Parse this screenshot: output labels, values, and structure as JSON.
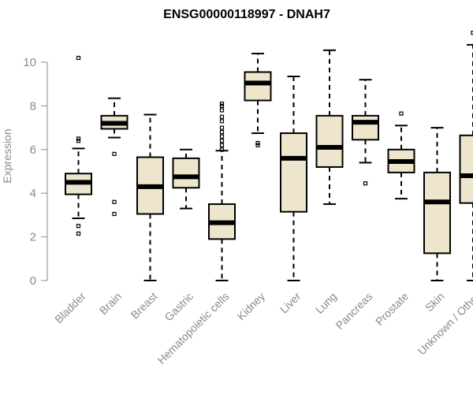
{
  "chart_data": {
    "type": "boxplot",
    "title": "ENSG00000118997 - DNAH7",
    "xlabel": "",
    "ylabel": "Expression",
    "ylim": [
      0,
      11.5
    ],
    "yticks": [
      0,
      2,
      4,
      6,
      8,
      10
    ],
    "box_fill": "#ede6cc",
    "stroke": "#000000",
    "categories": [
      "Bladder",
      "Brain",
      "Breast",
      "Gastric",
      "Hematopoietic cells",
      "Kidney",
      "Liver",
      "Lung",
      "Pancreas",
      "Prostate",
      "Skin",
      "Unknown / Other"
    ],
    "boxes": [
      {
        "whisker_low": 2.85,
        "q1": 3.95,
        "median": 4.5,
        "q3": 4.9,
        "whisker_high": 6.05,
        "outliers": [
          2.15,
          2.5,
          6.4,
          6.5,
          10.2
        ]
      },
      {
        "whisker_low": 6.55,
        "q1": 6.95,
        "median": 7.2,
        "q3": 7.55,
        "whisker_high": 8.35,
        "outliers": [
          3.05,
          3.6,
          5.8
        ]
      },
      {
        "whisker_low": 0.0,
        "q1": 3.05,
        "median": 4.3,
        "q3": 5.65,
        "whisker_high": 7.6,
        "outliers": []
      },
      {
        "whisker_low": 3.3,
        "q1": 4.25,
        "median": 4.75,
        "q3": 5.6,
        "whisker_high": 6.0,
        "outliers": []
      },
      {
        "whisker_low": 0.0,
        "q1": 1.9,
        "median": 2.65,
        "q3": 3.5,
        "whisker_high": 5.95,
        "outliers": [
          6.0,
          6.2,
          6.4,
          6.6,
          6.8,
          7.0,
          7.3,
          7.5,
          7.8,
          8.0,
          8.1
        ]
      },
      {
        "whisker_low": 6.75,
        "q1": 8.25,
        "median": 9.05,
        "q3": 9.55,
        "whisker_high": 10.4,
        "outliers": [
          6.2,
          6.3
        ]
      },
      {
        "whisker_low": 0.0,
        "q1": 3.15,
        "median": 5.6,
        "q3": 6.75,
        "whisker_high": 9.35,
        "outliers": []
      },
      {
        "whisker_low": 3.5,
        "q1": 5.2,
        "median": 6.1,
        "q3": 7.55,
        "whisker_high": 10.55,
        "outliers": []
      },
      {
        "whisker_low": 5.4,
        "q1": 6.45,
        "median": 7.25,
        "q3": 7.55,
        "whisker_high": 9.2,
        "outliers": [
          4.45
        ]
      },
      {
        "whisker_low": 3.75,
        "q1": 4.95,
        "median": 5.45,
        "q3": 6.0,
        "whisker_high": 7.1,
        "outliers": [
          7.65
        ]
      },
      {
        "whisker_low": 0.0,
        "q1": 1.25,
        "median": 3.6,
        "q3": 4.95,
        "whisker_high": 7.0,
        "outliers": []
      },
      {
        "whisker_low": 0.0,
        "q1": 3.55,
        "median": 4.8,
        "q3": 6.65,
        "whisker_high": 10.8,
        "outliers": [
          11.35
        ]
      }
    ]
  }
}
